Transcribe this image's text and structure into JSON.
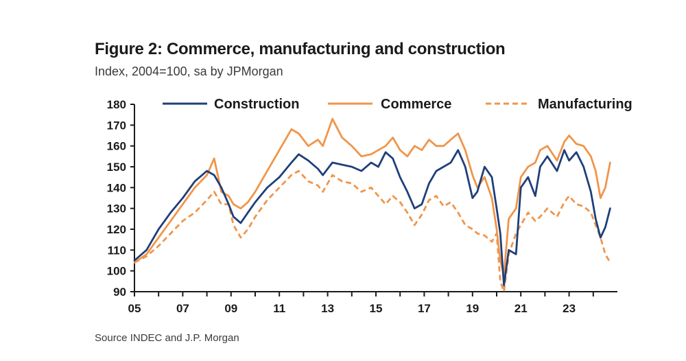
{
  "figure": {
    "title": "Figure 2: Commerce, manufacturing and construction",
    "subtitle": "Index, 2004=100, sa by JPMorgan",
    "source": "Source INDEC and J.P. Morgan"
  },
  "chart_data": {
    "type": "line",
    "title": "Figure 2: Commerce, manufacturing and construction",
    "subtitle": "Index, 2004=100, sa by JPMorgan",
    "xlabel": "",
    "ylabel": "",
    "xlim": [
      2005,
      2025
    ],
    "ylim": [
      90,
      180
    ],
    "y_ticks": [
      90,
      100,
      110,
      120,
      130,
      140,
      150,
      160,
      170,
      180
    ],
    "x_ticks": [
      {
        "year": 2005,
        "label": "05"
      },
      {
        "year": 2007,
        "label": "07"
      },
      {
        "year": 2009,
        "label": "09"
      },
      {
        "year": 2011,
        "label": "11"
      },
      {
        "year": 2013,
        "label": "13"
      },
      {
        "year": 2015,
        "label": "15"
      },
      {
        "year": 2017,
        "label": "17"
      },
      {
        "year": 2019,
        "label": "19"
      },
      {
        "year": 2021,
        "label": "21"
      },
      {
        "year": 2023,
        "label": "23"
      }
    ],
    "legend_position": "top",
    "series": [
      {
        "name": "Construction",
        "color": "#1f3f7a",
        "style": "solid",
        "x": [
          2005.0,
          2005.5,
          2006.0,
          2006.5,
          2007.0,
          2007.5,
          2008.0,
          2008.3,
          2008.6,
          2008.9,
          2009.1,
          2009.4,
          2009.7,
          2010.0,
          2010.5,
          2011.0,
          2011.5,
          2011.8,
          2012.2,
          2012.6,
          2012.8,
          2013.2,
          2013.6,
          2014.0,
          2014.4,
          2014.8,
          2015.1,
          2015.4,
          2015.7,
          2016.0,
          2016.3,
          2016.6,
          2016.9,
          2017.2,
          2017.5,
          2017.8,
          2018.1,
          2018.4,
          2018.7,
          2019.0,
          2019.2,
          2019.5,
          2019.8,
          2020.0,
          2020.15,
          2020.3,
          2020.5,
          2020.8,
          2021.0,
          2021.3,
          2021.6,
          2021.8,
          2022.1,
          2022.5,
          2022.8,
          2023.0,
          2023.3,
          2023.6,
          2023.9,
          2024.1,
          2024.3,
          2024.5,
          2024.7
        ],
        "values": [
          105,
          110,
          120,
          128,
          135,
          143,
          148,
          146,
          140,
          132,
          126,
          123,
          128,
          133,
          140,
          145,
          152,
          156,
          153,
          149,
          146,
          152,
          151,
          150,
          148,
          152,
          150,
          157,
          154,
          145,
          138,
          130,
          132,
          142,
          148,
          150,
          152,
          158,
          150,
          135,
          138,
          150,
          145,
          130,
          118,
          93,
          110,
          108,
          140,
          145,
          136,
          150,
          155,
          148,
          158,
          153,
          157,
          150,
          138,
          125,
          116,
          121,
          130
        ]
      },
      {
        "name": "Commerce",
        "color": "#f0954a",
        "style": "solid",
        "x": [
          2005.0,
          2005.5,
          2006.0,
          2006.5,
          2007.0,
          2007.5,
          2008.0,
          2008.3,
          2008.6,
          2008.9,
          2009.1,
          2009.4,
          2009.7,
          2010.0,
          2010.5,
          2011.0,
          2011.5,
          2011.8,
          2012.2,
          2012.6,
          2012.8,
          2013.2,
          2013.6,
          2014.0,
          2014.4,
          2014.8,
          2015.1,
          2015.4,
          2015.7,
          2016.0,
          2016.3,
          2016.6,
          2016.9,
          2017.2,
          2017.5,
          2017.8,
          2018.1,
          2018.4,
          2018.7,
          2019.0,
          2019.2,
          2019.5,
          2019.8,
          2020.0,
          2020.15,
          2020.3,
          2020.5,
          2020.8,
          2021.0,
          2021.3,
          2021.6,
          2021.8,
          2022.1,
          2022.5,
          2022.8,
          2023.0,
          2023.3,
          2023.6,
          2023.9,
          2024.1,
          2024.3,
          2024.5,
          2024.7
        ],
        "values": [
          104,
          108,
          116,
          124,
          132,
          140,
          146,
          154,
          138,
          136,
          132,
          130,
          133,
          138,
          148,
          158,
          168,
          166,
          160,
          163,
          160,
          173,
          164,
          160,
          155,
          156,
          158,
          160,
          164,
          158,
          155,
          160,
          158,
          163,
          160,
          160,
          163,
          166,
          158,
          146,
          140,
          145,
          135,
          120,
          105,
          98,
          125,
          130,
          145,
          150,
          152,
          158,
          160,
          153,
          162,
          165,
          161,
          160,
          155,
          148,
          135,
          140,
          152
        ]
      },
      {
        "name": "Manufacturing",
        "color": "#f0954a",
        "style": "dashed",
        "x": [
          2005.0,
          2005.5,
          2006.0,
          2006.5,
          2007.0,
          2007.5,
          2008.0,
          2008.3,
          2008.6,
          2008.9,
          2009.1,
          2009.4,
          2009.7,
          2010.0,
          2010.5,
          2011.0,
          2011.5,
          2011.8,
          2012.2,
          2012.6,
          2012.8,
          2013.2,
          2013.6,
          2014.0,
          2014.4,
          2014.8,
          2015.1,
          2015.4,
          2015.7,
          2016.0,
          2016.3,
          2016.6,
          2016.9,
          2017.2,
          2017.5,
          2017.8,
          2018.1,
          2018.4,
          2018.7,
          2019.0,
          2019.2,
          2019.5,
          2019.8,
          2020.0,
          2020.15,
          2020.3,
          2020.5,
          2020.8,
          2021.0,
          2021.3,
          2021.6,
          2021.8,
          2022.1,
          2022.5,
          2022.8,
          2023.0,
          2023.3,
          2023.6,
          2023.9,
          2024.1,
          2024.3,
          2024.5,
          2024.7
        ],
        "values": [
          104,
          107,
          112,
          118,
          124,
          128,
          134,
          138,
          132,
          132,
          122,
          116,
          120,
          126,
          134,
          140,
          146,
          148,
          143,
          141,
          138,
          146,
          143,
          142,
          138,
          140,
          136,
          132,
          136,
          133,
          128,
          122,
          127,
          134,
          136,
          131,
          133,
          128,
          122,
          120,
          118,
          117,
          114,
          118,
          95,
          90,
          108,
          118,
          122,
          128,
          124,
          126,
          130,
          126,
          133,
          136,
          132,
          131,
          128,
          122,
          116,
          108,
          104
        ]
      }
    ]
  }
}
